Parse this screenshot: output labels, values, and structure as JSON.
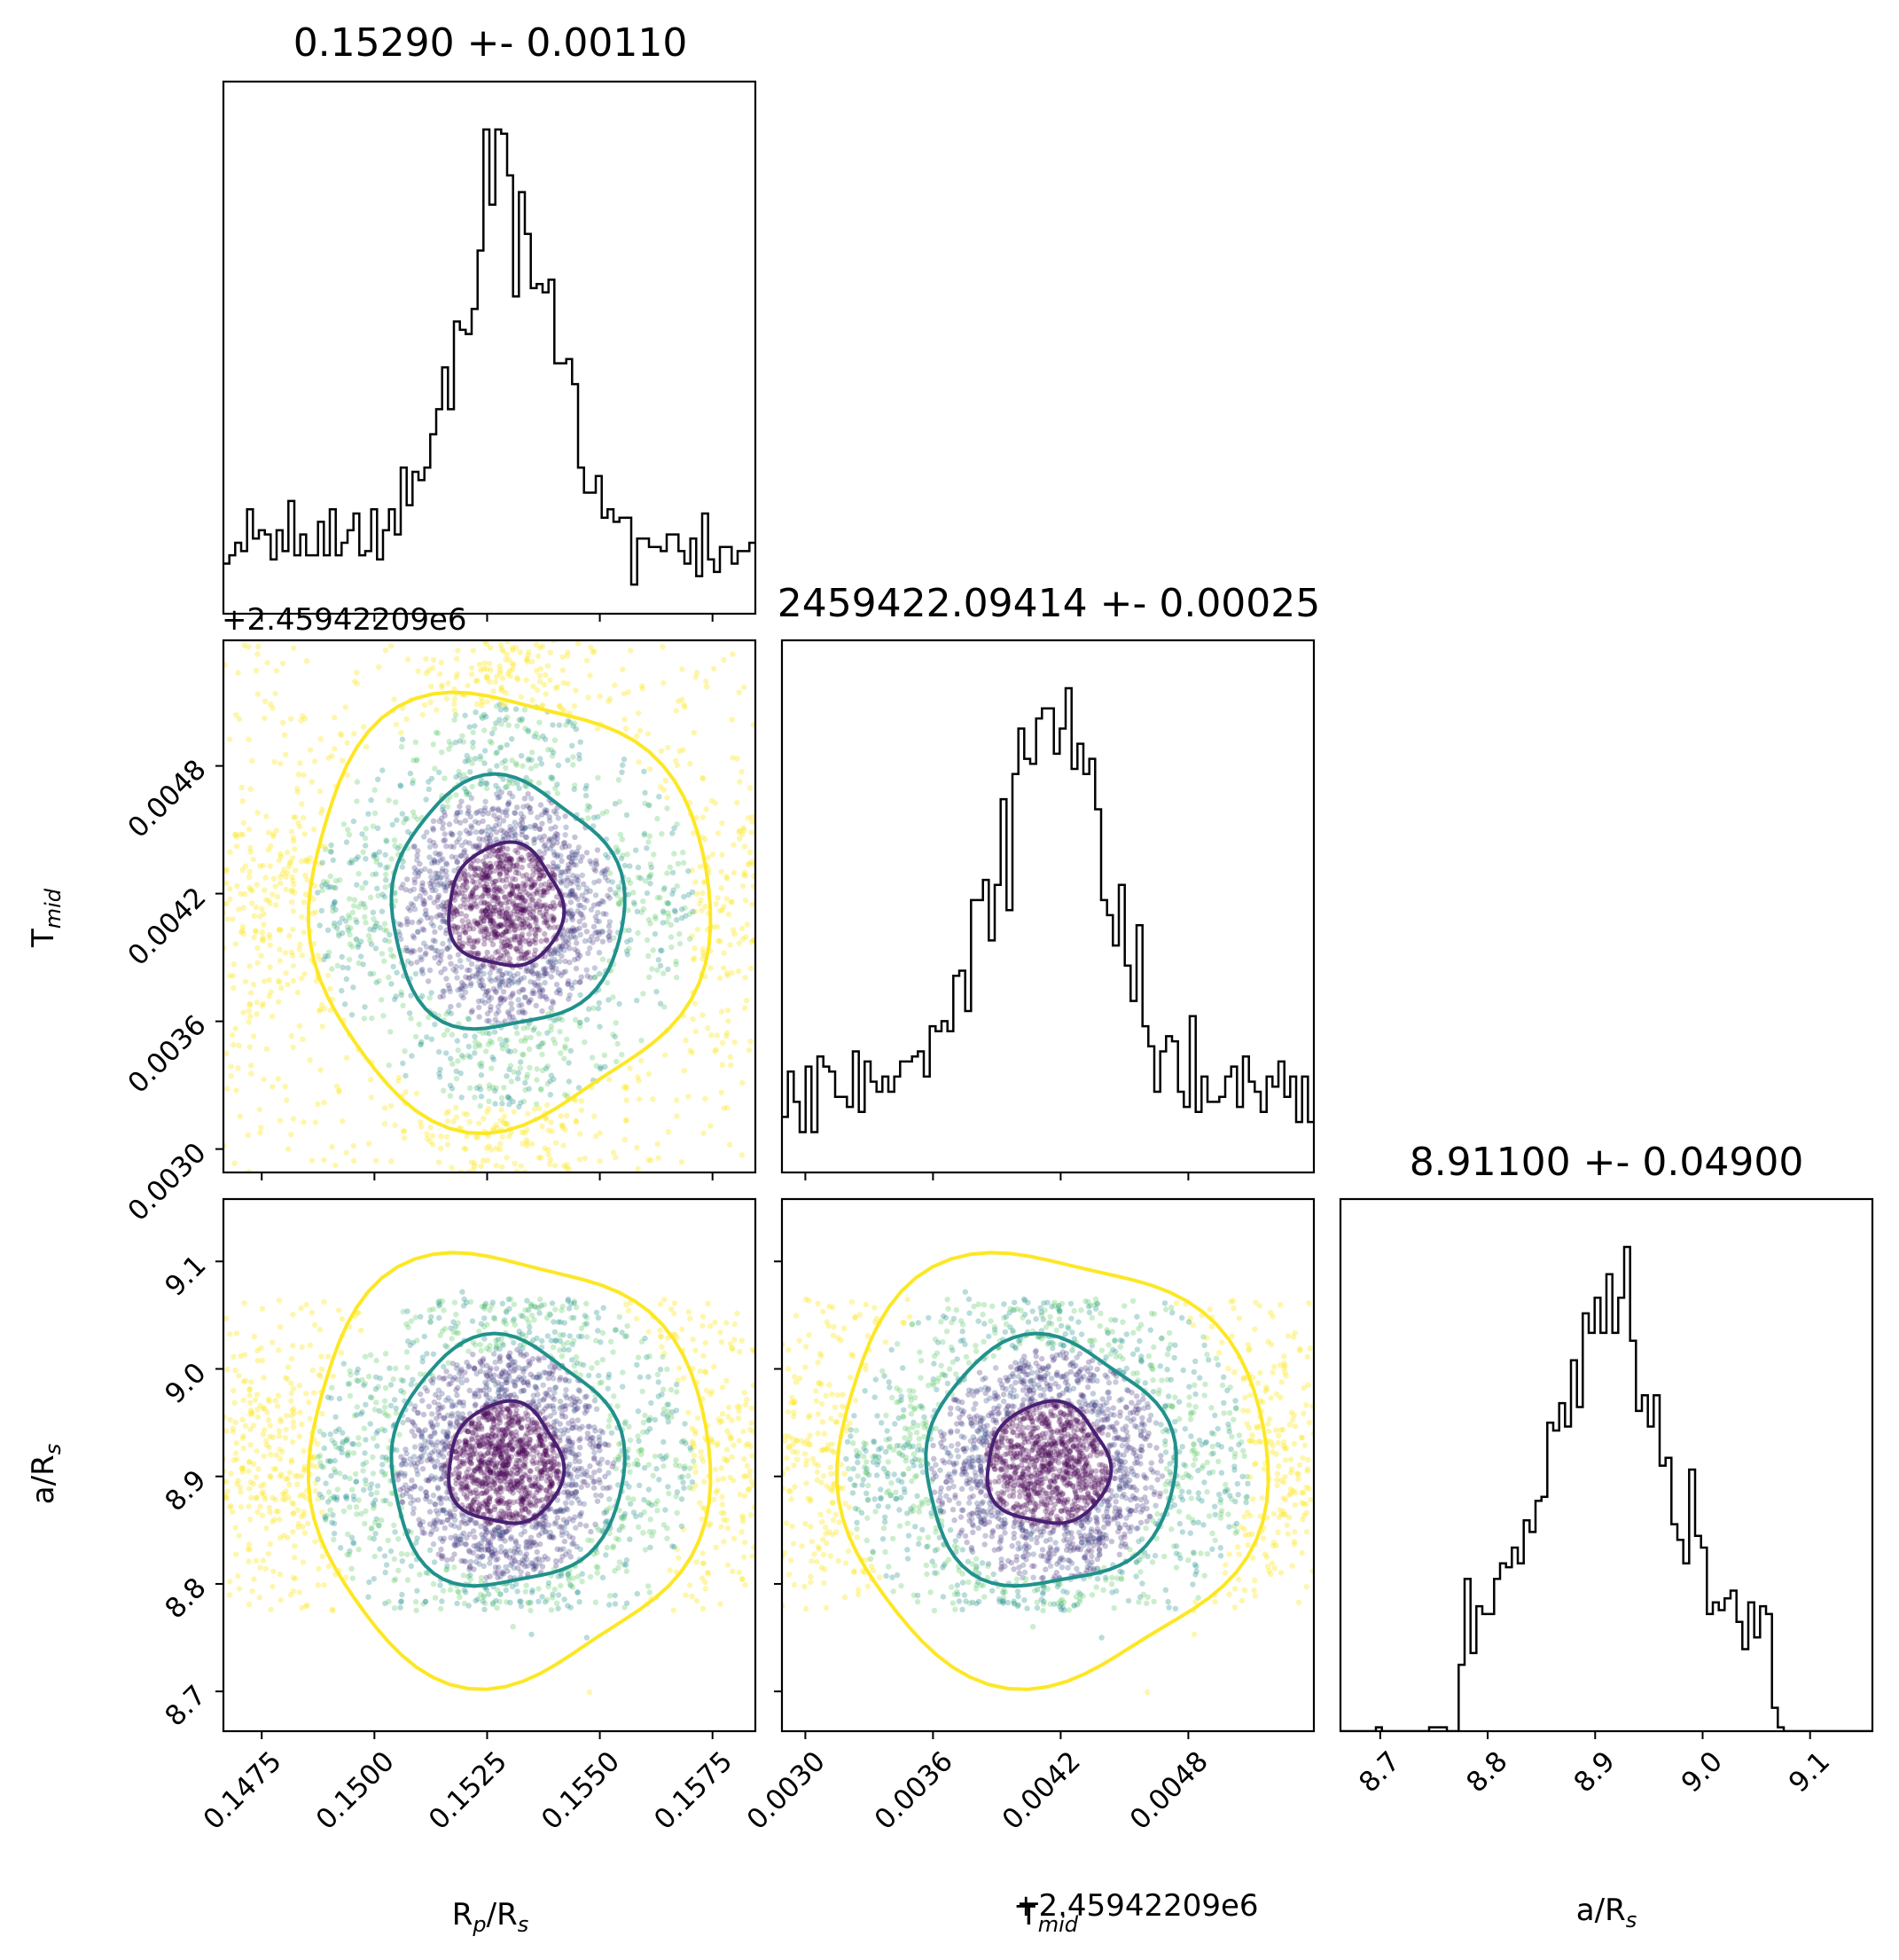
{
  "chart_data": {
    "type": "scatter",
    "parameters": [
      {
        "id": "rp",
        "label_main": "R",
        "label_sub1": "p",
        "label_mid": "/R",
        "label_sub2": "s",
        "range": [
          0.14665,
          0.15845
        ],
        "ticks": [
          "0.1475",
          "0.1500",
          "0.1525",
          "0.1550",
          "0.1575"
        ],
        "tick_values": [
          0.1475,
          0.15,
          0.1525,
          0.155,
          0.1575
        ],
        "mean": 0.1529,
        "sigma": 0.0011
      },
      {
        "id": "tmid",
        "label_main": "T",
        "label_sub1": "mid",
        "offset_text": "+2.45942209e6",
        "range": [
          0.00289,
          0.00539
        ],
        "ticks": [
          "0.0030",
          "0.0036",
          "0.0042",
          "0.0048"
        ],
        "tick_values": [
          0.003,
          0.0036,
          0.0042,
          0.0048
        ],
        "mean": 0.00414,
        "sigma": 0.00025
      },
      {
        "id": "ars",
        "label_main": "a/R",
        "label_sub1": "s",
        "range": [
          8.663,
          9.158
        ],
        "ticks": [
          "8.7",
          "8.8",
          "8.9",
          "9.0",
          "9.1"
        ],
        "tick_values": [
          8.7,
          8.8,
          8.9,
          9.0,
          9.1
        ],
        "mean": 8.911,
        "sigma": 0.049
      }
    ],
    "titles": [
      "0.15290 +- 0.00110",
      "2459422.09414 +- 0.00025",
      "8.91100 +- 0.04900"
    ],
    "contour_levels": [
      "1-sigma",
      "2-sigma",
      "3-sigma"
    ],
    "colors": {
      "inner": "#482173",
      "middle": "#21918c",
      "outer": "#fde725",
      "hist": "#000000"
    }
  }
}
